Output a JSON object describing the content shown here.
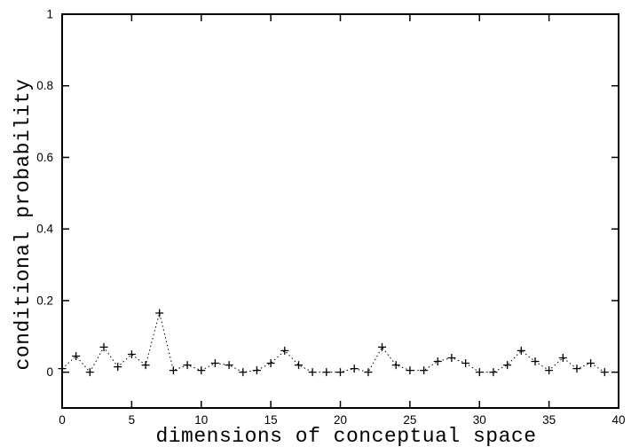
{
  "chart_data": {
    "type": "line",
    "title": "",
    "xlabel": "dimensions of conceptual space",
    "ylabel": "conditional probability",
    "x": [
      0,
      1,
      2,
      3,
      4,
      5,
      6,
      7,
      8,
      9,
      10,
      11,
      12,
      13,
      14,
      15,
      16,
      17,
      18,
      19,
      20,
      21,
      22,
      23,
      24,
      25,
      26,
      27,
      28,
      29,
      30,
      31,
      32,
      33,
      34,
      35,
      36,
      37,
      38,
      39
    ],
    "y": [
      0.01,
      0.045,
      0.0,
      0.07,
      0.015,
      0.05,
      0.02,
      0.165,
      0.005,
      0.02,
      0.005,
      0.025,
      0.02,
      0.0,
      0.005,
      0.025,
      0.06,
      0.02,
      0.0,
      0.0,
      0.0,
      0.01,
      0.0,
      0.07,
      0.02,
      0.005,
      0.005,
      0.03,
      0.04,
      0.025,
      0.0,
      0.0,
      0.02,
      0.06,
      0.03,
      0.005,
      0.04,
      0.01,
      0.025,
      0.0
    ],
    "xlim": [
      0,
      40
    ],
    "ylim": [
      -0.1,
      1
    ],
    "xticks": {
      "values": [
        0,
        5,
        10,
        15,
        20,
        25,
        30,
        35,
        40
      ],
      "labels": [
        "0",
        "5",
        "10",
        "15",
        "20",
        "25",
        "30",
        "35",
        "40"
      ]
    },
    "yticks": {
      "values": [
        0,
        0.2,
        0.4,
        0.6,
        0.8,
        1
      ],
      "labels": [
        "0",
        "0.2",
        "0.4",
        "0.6",
        "0.8",
        "1"
      ]
    },
    "grid": false,
    "legend": "none",
    "line_style": "dotted",
    "marker": "plus",
    "series_color": "#000000",
    "frame_color": "#000000",
    "background_color": "#ffffff"
  }
}
